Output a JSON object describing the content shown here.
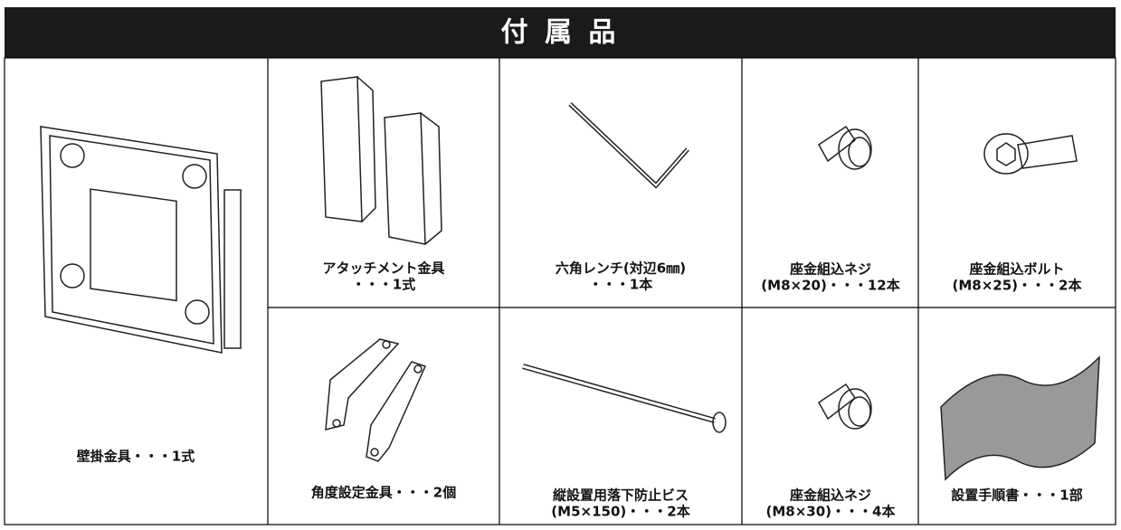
{
  "header": {
    "title": "付 属 品"
  },
  "items": [
    {
      "lines": [
        "壁掛金具・・・1式"
      ]
    },
    {
      "lines": [
        "アタッチメント金具",
        "・・・1式"
      ]
    },
    {
      "lines": [
        "六角レンチ(対辺6㎜)",
        "・・・1本"
      ]
    },
    {
      "lines": [
        "座金組込ネジ",
        "(M8×20)・・・12本"
      ]
    },
    {
      "lines": [
        "座金組込ボルト",
        "(M8×25)・・・2本"
      ]
    },
    {
      "lines": [
        "角度設定金具・・・2個"
      ]
    },
    {
      "lines": [
        "縦設置用落下防止ビス",
        "(M5×150)・・・2本"
      ]
    },
    {
      "lines": [
        "座金組込ネジ",
        "(M8×30)・・・4本"
      ]
    },
    {
      "lines": [
        "設置手順書・・・1部"
      ]
    }
  ]
}
